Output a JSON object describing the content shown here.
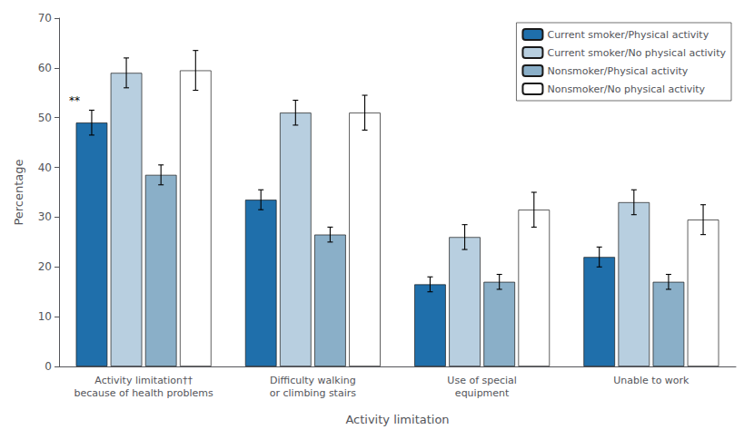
{
  "chart_data": {
    "type": "bar",
    "categories": [
      "Activity limitation††\nbecause of health problems",
      "Difficulty walking\nor climbing stairs",
      "Use of special\nequipment",
      "Unable to work"
    ],
    "series": [
      {
        "name": "Current smoker/Physical activity",
        "color": "#1f6fab",
        "values": [
          49.0,
          33.5,
          16.5,
          22.0
        ],
        "errors": [
          2.5,
          2.0,
          1.5,
          2.0
        ]
      },
      {
        "name": "Current smoker/No physical activity",
        "color": "#b8cfe0",
        "values": [
          59.0,
          51.0,
          26.0,
          33.0
        ],
        "errors": [
          3.0,
          2.5,
          2.5,
          2.5
        ]
      },
      {
        "name": "Nonsmoker/Physical activity",
        "color": "#8aafc8",
        "values": [
          38.5,
          26.5,
          17.0,
          17.0
        ],
        "errors": [
          2.0,
          1.5,
          1.5,
          1.5
        ]
      },
      {
        "name": "Nonsmoker/No physical activity",
        "color": "#ffffff",
        "values": [
          59.5,
          51.0,
          31.5,
          29.5
        ],
        "errors": [
          4.0,
          3.5,
          3.5,
          3.0
        ]
      }
    ],
    "xlabel": "Activity limitation",
    "ylabel": "Percentage",
    "ylim": [
      0,
      70
    ],
    "yticks": [
      0,
      10,
      20,
      30,
      40,
      50,
      60,
      70
    ],
    "annotations": [
      {
        "text": "**",
        "series": "Current smoker/Physical activity",
        "category": "Activity limitation††\nbecause of health problems"
      }
    ],
    "grid": false,
    "legend": "upper right"
  }
}
